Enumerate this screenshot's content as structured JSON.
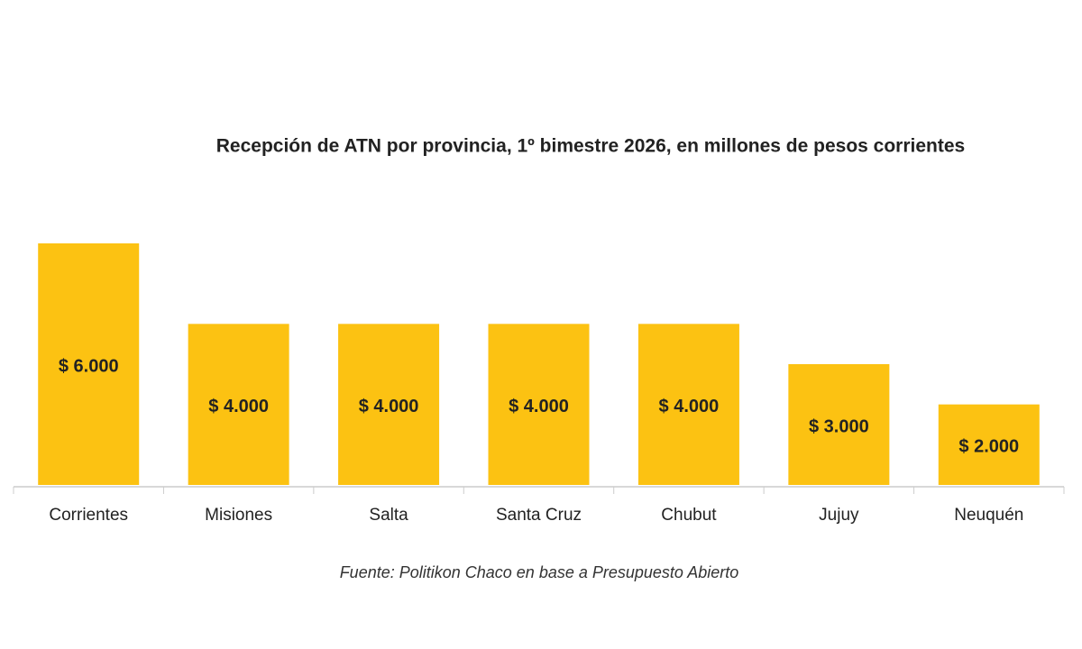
{
  "chart_data": {
    "type": "bar",
    "title": "Recepción de ATN por provincia, 1º bimestre 2026, en millones de pesos corrientes",
    "categories": [
      "Corrientes",
      "Misiones",
      "Salta",
      "Santa Cruz",
      "Chubut",
      "Jujuy",
      "Neuquén"
    ],
    "values": [
      6000,
      4000,
      4000,
      4000,
      4000,
      3000,
      2000
    ],
    "value_labels": [
      "$ 6.000",
      "$ 4.000",
      "$ 4.000",
      "$ 4.000",
      "$ 4.000",
      "$ 3.000",
      "$ 2.000"
    ],
    "color": "#fcc212",
    "source": "Fuente: Politikon Chaco en base a Presupuesto Abierto"
  }
}
